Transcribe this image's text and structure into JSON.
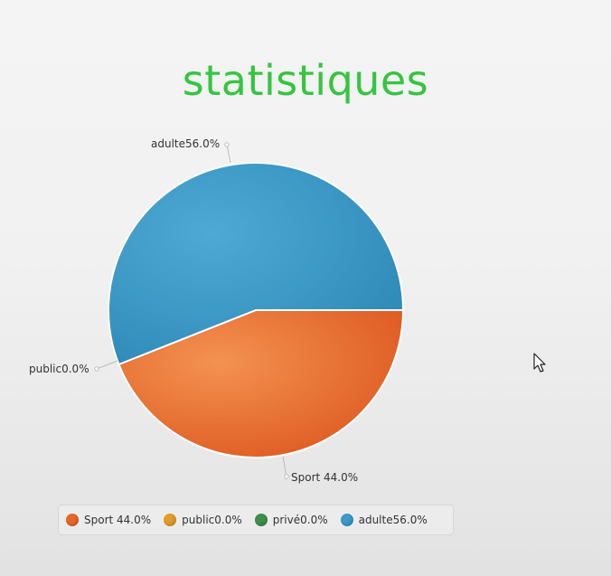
{
  "chart_data": {
    "type": "pie",
    "title": "statistiques",
    "slices": [
      {
        "label": "Sport 44.0%",
        "legend": "Sport 44.0%",
        "value": 44.0,
        "color": "#e8652a"
      },
      {
        "label": "public0.0%",
        "legend": "public0.0%",
        "value": 0.0,
        "color": "#e59b2a"
      },
      {
        "label": "",
        "legend": "privé0.0%",
        "value": 0.0,
        "color": "#3f8f4a"
      },
      {
        "label": "adulte56.0%",
        "legend": "adulte56.0%",
        "value": 56.0,
        "color": "#3a9ac8"
      }
    ],
    "legend_position": "bottom",
    "title_color": "#35c53f"
  },
  "cursor": {
    "icon": "mouse-pointer-icon"
  }
}
